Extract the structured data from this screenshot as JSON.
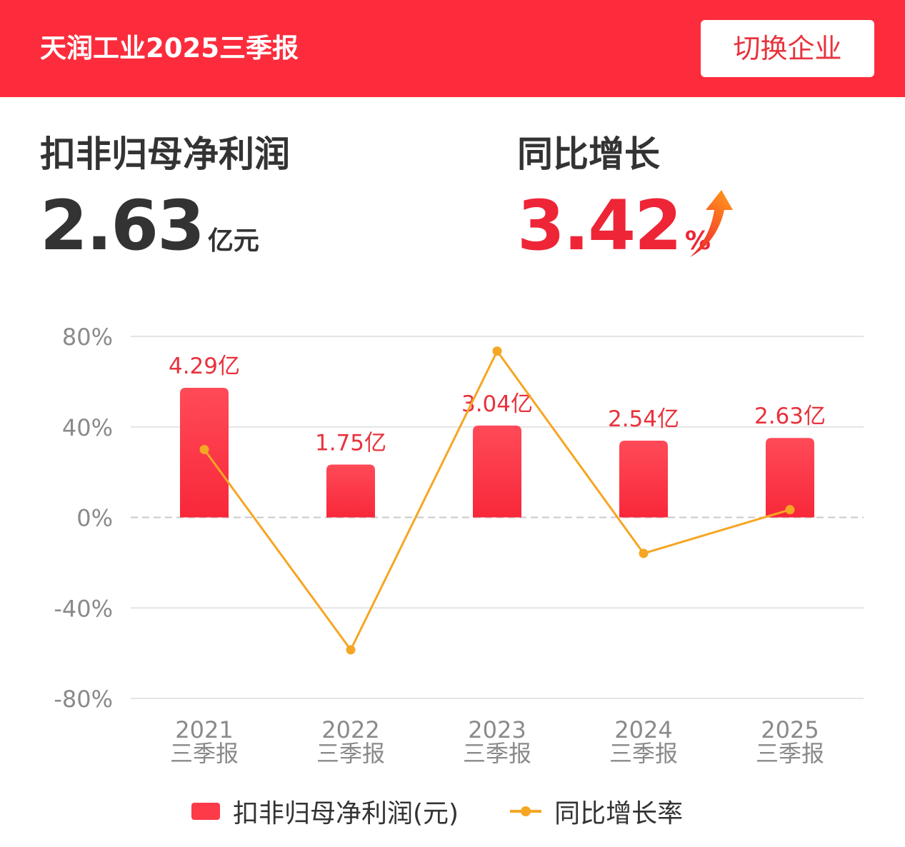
{
  "header": {
    "title": "天润工业2025三季报",
    "switch_button": "切换企业"
  },
  "metrics": {
    "net_profit": {
      "label": "扣非归母净利润",
      "value": "2.63",
      "unit": "亿元"
    },
    "yoy_growth": {
      "label": "同比增长",
      "value": "3.42",
      "unit": "%",
      "trend_icon": "up-arrow-icon"
    }
  },
  "colors": {
    "header_bg": "#fc2c3c",
    "bar": "#fc3a48",
    "line": "#f5a623",
    "bar_label": "#e8323c",
    "accent_text": "#ee2536"
  },
  "chart_data": {
    "type": "bar",
    "categories": [
      [
        "2021",
        "三季报"
      ],
      [
        "2022",
        "三季报"
      ],
      [
        "2023",
        "三季报"
      ],
      [
        "2024",
        "三季报"
      ],
      [
        "2025",
        "三季报"
      ]
    ],
    "series": [
      {
        "name": "扣非归母净利润(元)",
        "type": "bar",
        "values": [
          4.29,
          1.75,
          3.04,
          2.54,
          2.63
        ],
        "labels": [
          "4.29亿",
          "1.75亿",
          "3.04亿",
          "2.54亿",
          "2.63亿"
        ]
      },
      {
        "name": "同比增长率",
        "type": "line",
        "values": [
          30,
          -58.5,
          73.5,
          -15.9,
          3.42
        ]
      }
    ],
    "y_axis": {
      "ticks": [
        "80%",
        "40%",
        "0%",
        "-40%",
        "-80%"
      ],
      "tick_values": [
        80,
        40,
        0,
        -40,
        -80
      ],
      "ylim": [
        -80,
        80
      ]
    },
    "grid": true,
    "legend_position": "bottom"
  },
  "legend": {
    "bar_label": "扣非归母净利润(元)",
    "line_label": "同比增长率"
  }
}
